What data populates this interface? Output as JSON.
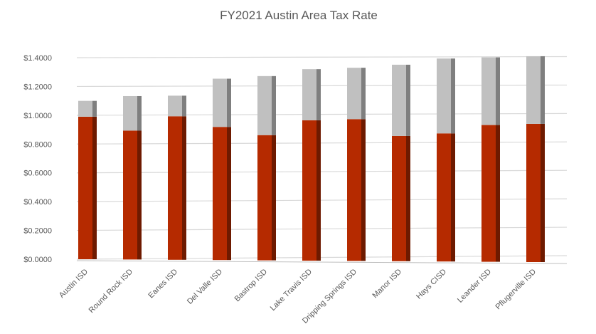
{
  "chart_data": {
    "type": "bar",
    "stacked": true,
    "style": "3d-column",
    "title": "FY2021 Austin Area Tax Rate",
    "xlabel": "",
    "ylabel": "",
    "ylim": [
      0,
      1.4
    ],
    "yticks": [
      "$0.0000",
      "$0.2000",
      "$0.4000",
      "$0.6000",
      "$0.8000",
      "$1.0000",
      "$1.2000",
      "$1.4000"
    ],
    "grid": true,
    "legend": "none",
    "categories": [
      "Austin ISD",
      "Round Rock ISD",
      "Eanes ISD",
      "Del Valle ISD",
      "Bastrop ISD",
      "Lake Travis ISD",
      "Dripping Springs ISD",
      "Manor ISD",
      "Hays CISD",
      "Leander ISD",
      "Pflugerville ISD"
    ],
    "series": [
      {
        "values": [
          0.99,
          0.895,
          0.997,
          0.925,
          0.87,
          0.975,
          0.985,
          0.87,
          0.89,
          0.95,
          0.96
        ],
        "color": "#b52a00"
      },
      {
        "values": [
          0.11,
          0.24,
          0.143,
          0.335,
          0.41,
          0.355,
          0.357,
          0.495,
          0.52,
          0.47,
          0.47
        ],
        "color": "#c0c0c0"
      }
    ]
  }
}
